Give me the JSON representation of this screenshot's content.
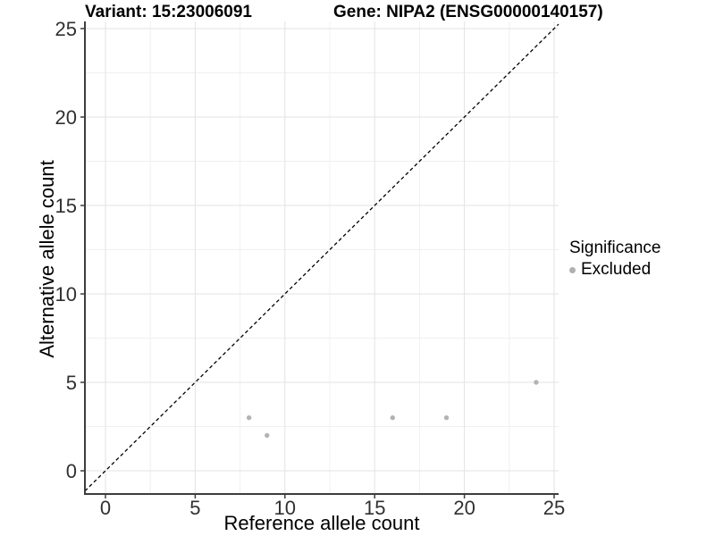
{
  "chart_data": {
    "type": "scatter",
    "titles": {
      "left": "Variant: 15:23006091",
      "right": "Gene: NIPA2 (ENSG00000140157)"
    },
    "xlabel": "Reference allele count",
    "ylabel": "Alternative allele count",
    "xlim": [
      0,
      25
    ],
    "ylim": [
      0,
      25
    ],
    "x_major_ticks": [
      0,
      5,
      10,
      15,
      20,
      25
    ],
    "y_major_ticks": [
      0,
      5,
      10,
      15,
      20,
      25
    ],
    "x_minor_ticks": [
      2.5,
      7.5,
      12.5,
      17.5,
      22.5
    ],
    "y_minor_ticks": [
      2.5,
      7.5,
      12.5,
      17.5,
      22.5
    ],
    "grid": "major+minor",
    "reference_line": {
      "type": "identity",
      "style": "dashed",
      "color": "#000000"
    },
    "series": [
      {
        "name": "Excluded",
        "color": "#b3b3b3",
        "marker": "circle",
        "points": [
          [
            8,
            3
          ],
          [
            9,
            2
          ],
          [
            16,
            3
          ],
          [
            19,
            3
          ],
          [
            24,
            5
          ]
        ]
      }
    ],
    "legend": {
      "title": "Significance",
      "position": "right",
      "items": [
        {
          "label": "Excluded",
          "color": "#b0b0b0"
        }
      ]
    }
  },
  "colors": {
    "background": "#ffffff",
    "axis_line": "#3d3d3d",
    "tick_text": "#303030",
    "grid_major": "#e3e3e3",
    "grid_minor": "#f0f0f0",
    "point": "#b3b3b3",
    "title_text": "#000000"
  }
}
